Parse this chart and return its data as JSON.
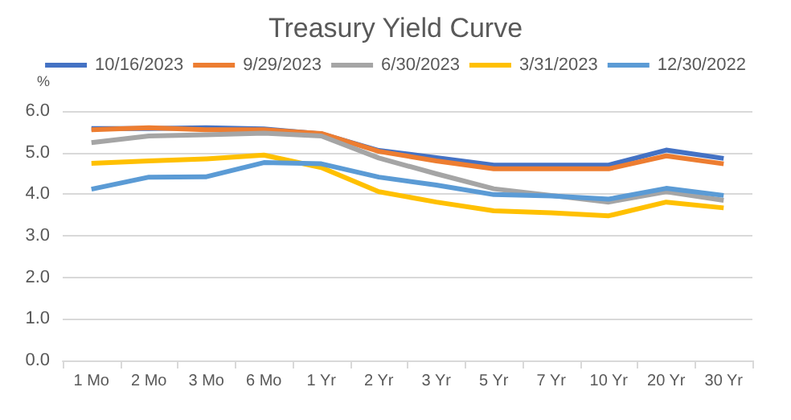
{
  "chart_data": {
    "type": "line",
    "title": "Treasury Yield Curve",
    "ylabel": "%",
    "categories": [
      "1 Mo",
      "2 Mo",
      "3 Mo",
      "6 Mo",
      "1 Yr",
      "2 Yr",
      "3 Yr",
      "5 Yr",
      "7 Yr",
      "10 Yr",
      "20 Yr",
      "30 Yr"
    ],
    "series": [
      {
        "name": "10/16/2023",
        "color": "#4472c4",
        "values": [
          5.58,
          5.58,
          5.6,
          5.57,
          5.45,
          5.05,
          4.88,
          4.7,
          4.7,
          4.7,
          5.06,
          4.86
        ]
      },
      {
        "name": "9/29/2023",
        "color": "#ed7d31",
        "values": [
          5.55,
          5.6,
          5.55,
          5.55,
          5.46,
          5.03,
          4.8,
          4.61,
          4.61,
          4.61,
          4.92,
          4.73
        ]
      },
      {
        "name": "6/30/2023",
        "color": "#a5a5a5",
        "values": [
          5.24,
          5.4,
          5.43,
          5.47,
          5.4,
          4.87,
          4.49,
          4.13,
          3.97,
          3.81,
          4.06,
          3.85
        ]
      },
      {
        "name": "3/31/2023",
        "color": "#ffc000",
        "values": [
          4.74,
          4.8,
          4.85,
          4.94,
          4.64,
          4.06,
          3.81,
          3.6,
          3.55,
          3.48,
          3.81,
          3.67
        ]
      },
      {
        "name": "12/30/2022",
        "color": "#5b9bd5",
        "values": [
          4.12,
          4.41,
          4.42,
          4.76,
          4.73,
          4.41,
          4.22,
          3.99,
          3.96,
          3.88,
          4.14,
          3.97
        ]
      }
    ],
    "ylim": [
      0,
      6
    ],
    "yticks": [
      {
        "value": 0,
        "label": "0.0"
      },
      {
        "value": 1,
        "label": "1.0"
      },
      {
        "value": 2,
        "label": "2.0"
      },
      {
        "value": 3,
        "label": "3.0"
      },
      {
        "value": 4,
        "label": "4.0"
      },
      {
        "value": 5,
        "label": "5.0"
      },
      {
        "value": 6,
        "label": "6.0"
      }
    ],
    "grid": "y",
    "legend": "top",
    "marker": "none",
    "line_style": "solid"
  }
}
